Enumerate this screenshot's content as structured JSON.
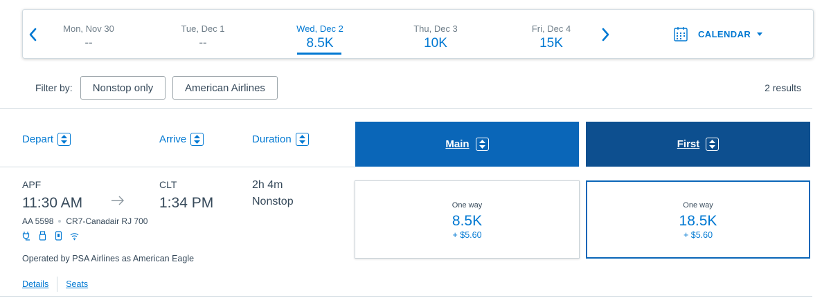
{
  "date_strip": {
    "prev_icon": "chevron-left-icon",
    "next_icon": "chevron-right-icon",
    "days": [
      {
        "label": "Mon, Nov 30",
        "price": "--"
      },
      {
        "label": "Tue, Dec 1",
        "price": "--"
      },
      {
        "label": "Wed, Dec 2",
        "price": "8.5K",
        "selected": true
      },
      {
        "label": "Thu, Dec 3",
        "price": "10K"
      },
      {
        "label": "Fri, Dec 4",
        "price": "15K"
      }
    ],
    "calendar_label": "CALENDAR",
    "calendar_icon": "calendar-icon"
  },
  "filters": {
    "label": "Filter by:",
    "buttons": [
      "Nonstop only",
      "American Airlines"
    ],
    "results": "2 results"
  },
  "columns": {
    "depart": "Depart",
    "arrive": "Arrive",
    "duration": "Duration",
    "main": "Main",
    "first": "First"
  },
  "flight": {
    "depart_airport": "APF",
    "depart_time": "11:30 AM",
    "arrive_airport": "CLT",
    "arrive_time": "1:34 PM",
    "duration": "2h 4m",
    "stops": "Nonstop",
    "flight_number": "AA 5598",
    "aircraft": "CR7-Canadair RJ 700",
    "amenities": [
      "power-outlet-icon",
      "usb-icon",
      "phone-icon",
      "wifi-icon"
    ],
    "operated_by": "Operated by PSA Airlines as American Eagle",
    "links": [
      "Details",
      "Seats"
    ]
  },
  "fares": {
    "main": {
      "type": "One way",
      "miles": "8.5K",
      "tax": "+ $5.60"
    },
    "first": {
      "type": "One way",
      "miles": "18.5K",
      "tax": "+ $5.60"
    }
  },
  "colors": {
    "accent": "#0078d2",
    "main_header": "#0a66b8",
    "first_header": "#0d4f8f",
    "text": "#36495a"
  }
}
